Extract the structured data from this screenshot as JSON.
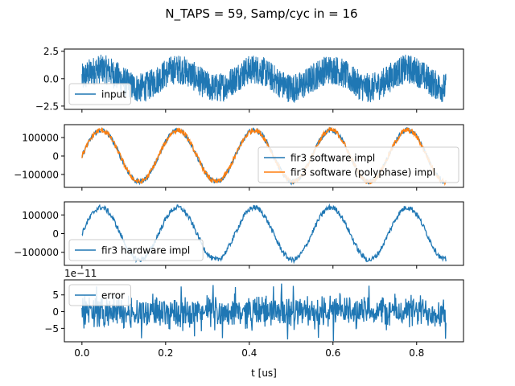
{
  "figure": {
    "title": "N_TAPS = 59, Samp/cyc in = 16",
    "xlabel": "t [us]"
  },
  "colors": {
    "blue": "#1f77b4",
    "orange": "#ff7f0e"
  },
  "chart_data": [
    {
      "type": "line",
      "panel": "input",
      "x_range": [
        0.0,
        0.87
      ],
      "xlim": [
        -0.042,
        0.912
      ],
      "ylim": [
        -2.8,
        2.7
      ],
      "yticks": [
        2.5,
        0.0,
        -2.5
      ],
      "ytick_labels": [
        "2.5",
        "0.0",
        "−2.5"
      ],
      "offset_text": "",
      "legend": {
        "placement": "lower-left",
        "entries": [
          "input"
        ]
      },
      "series": [
        {
          "name": "input",
          "color": "#1f77b4",
          "envelope": {
            "shape": "sine",
            "amplitude": 0.85,
            "cycles": 4.75,
            "phase_deg": 0,
            "noise_band": 1.35,
            "trend": 0.0
          }
        }
      ]
    },
    {
      "type": "line",
      "panel": "software",
      "x_range": [
        0.0,
        0.87
      ],
      "xlim": [
        -0.042,
        0.912
      ],
      "ylim": [
        -170000,
        170000
      ],
      "yticks": [
        100000,
        0,
        -100000
      ],
      "ytick_labels": [
        "100000",
        "0",
        "−100000"
      ],
      "offset_text": "",
      "legend": {
        "placement": "lower-right",
        "entries": [
          "fir3 software impl",
          "fir3 software (polyphase) impl"
        ]
      },
      "series": [
        {
          "name": "fir3 software impl",
          "color": "#1f77b4",
          "envelope": {
            "shape": "sine",
            "amplitude": 140000,
            "cycles": 4.75,
            "phase_deg": 0,
            "noise_band": 14000
          }
        },
        {
          "name": "fir3 software (polyphase) impl",
          "color": "#ff7f0e",
          "envelope": {
            "shape": "sine",
            "amplitude": 140000,
            "cycles": 4.75,
            "phase_deg": 0,
            "noise_band": 14000
          }
        }
      ]
    },
    {
      "type": "line",
      "panel": "hardware",
      "x_range": [
        0.0,
        0.87
      ],
      "xlim": [
        -0.042,
        0.912
      ],
      "ylim": [
        -170000,
        170000
      ],
      "yticks": [
        100000,
        0,
        -100000
      ],
      "ytick_labels": [
        "100000",
        "0",
        "−100000"
      ],
      "offset_text": "",
      "legend": {
        "placement": "lower-left",
        "entries": [
          "fir3 hardware impl"
        ]
      },
      "series": [
        {
          "name": "fir3 hardware impl",
          "color": "#1f77b4",
          "envelope": {
            "shape": "sine",
            "amplitude": 140000,
            "cycles": 4.75,
            "phase_deg": 0,
            "noise_band": 14000
          }
        }
      ]
    },
    {
      "type": "line",
      "panel": "error",
      "x_range": [
        0.0,
        0.87
      ],
      "xlim": [
        -0.042,
        0.912
      ],
      "ylim": [
        -9e-11,
        9.5e-11
      ],
      "yticks": [
        5e-11,
        0,
        -5e-11
      ],
      "ytick_labels": [
        "5",
        "0",
        "−5"
      ],
      "xticks": [
        0.0,
        0.2,
        0.4,
        0.6,
        0.8
      ],
      "xtick_labels": [
        "0.0",
        "0.2",
        "0.4",
        "0.6",
        "0.8"
      ],
      "offset_text": "1e−11",
      "legend": {
        "placement": "upper-left",
        "entries": [
          "error"
        ]
      },
      "series": [
        {
          "name": "error",
          "color": "#1f77b4",
          "envelope": {
            "shape": "noise",
            "amplitude": 6e-11,
            "spike_max": 9e-11
          }
        }
      ]
    }
  ]
}
